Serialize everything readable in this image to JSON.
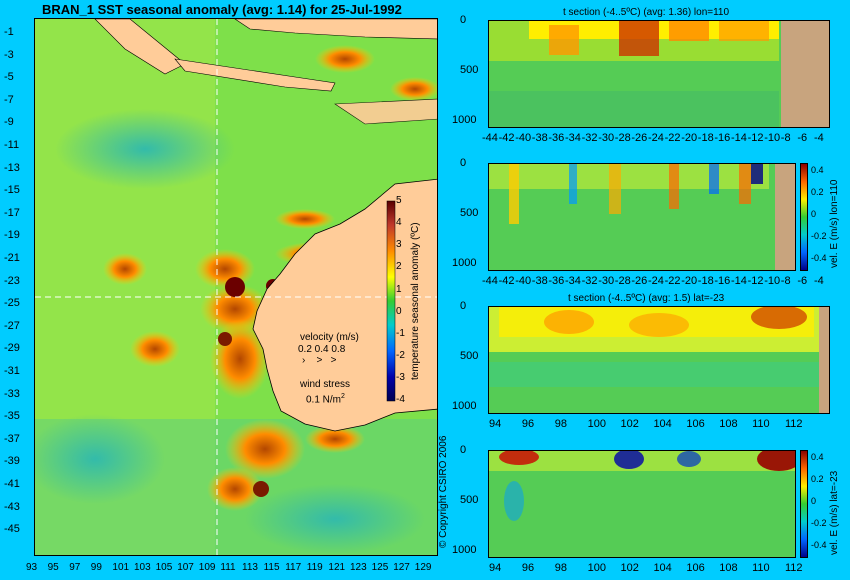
{
  "map": {
    "title": "BRAN_1 SST seasonal anomaly (avg: 1.14) for 25-Jul-1992",
    "lat_ticks": [
      "-1",
      "-3",
      "-5",
      "-7",
      "-9",
      "-11",
      "-13",
      "-15",
      "-17",
      "-19",
      "-21",
      "-23",
      "-25",
      "-27",
      "-29",
      "-31",
      "-33",
      "-35",
      "-37",
      "-39",
      "-41",
      "-43",
      "-45"
    ],
    "lon_ticks": [
      "93",
      "95",
      "97",
      "99",
      "101",
      "103",
      "105",
      "107",
      "109",
      "111",
      "113",
      "115",
      "117",
      "119",
      "121",
      "123",
      "125",
      "127",
      "129"
    ],
    "colorbar_label": "temperature seasonal anomaly (ºC)",
    "colorbar_ticks": [
      "5",
      "4",
      "3",
      "2",
      "1",
      "0",
      "-1",
      "-2",
      "-3",
      "-4"
    ],
    "velocity_label": "velocity (m/s)",
    "velocity_values": "0.2 0.4 0.8",
    "wind_label": "wind stress",
    "wind_value": "0.1 N/m",
    "wind_exp": "2",
    "copyright": "© Copyright CSIRO 2006"
  },
  "panels": [
    {
      "title": "t section (-4..5ºC) (avg: 1.36) lon=110",
      "x_ticks": [
        "-44",
        "-42",
        "-40",
        "-38",
        "-36",
        "-34",
        "-32",
        "-30",
        "-28",
        "-26",
        "-24",
        "-22",
        "-20",
        "-18",
        "-16",
        "-14",
        "-12",
        "-10",
        "-8",
        "-6",
        "-4"
      ],
      "y_ticks": [
        "0",
        "500",
        "1000"
      ]
    },
    {
      "title": "",
      "x_ticks": [
        "-44",
        "-42",
        "-40",
        "-38",
        "-36",
        "-34",
        "-32",
        "-30",
        "-28",
        "-26",
        "-24",
        "-22",
        "-20",
        "-18",
        "-16",
        "-14",
        "-12",
        "-10",
        "-8",
        "-6",
        "-4"
      ],
      "y_ticks": [
        "0",
        "500",
        "1000"
      ],
      "cbar_label": "vel. E (m/s) lon=110",
      "cbar_ticks": [
        "0.4",
        "0.2",
        "0",
        "-0.2",
        "-0.4"
      ]
    },
    {
      "title": "t section (-4..5ºC) (avg: 1.5) lat=-23",
      "x_ticks": [
        "94",
        "96",
        "98",
        "100",
        "102",
        "104",
        "106",
        "108",
        "110",
        "112"
      ],
      "y_ticks": [
        "0",
        "500",
        "1000"
      ]
    },
    {
      "title": "",
      "x_ticks": [
        "94",
        "96",
        "98",
        "100",
        "102",
        "104",
        "106",
        "108",
        "110",
        "112"
      ],
      "y_ticks": [
        "0",
        "500",
        "1000"
      ],
      "cbar_label": "vel. E (m/s) lat=-23",
      "cbar_ticks": [
        "0.4",
        "0.2",
        "0",
        "-0.2",
        "-0.4"
      ]
    }
  ],
  "chart_data": [
    {
      "type": "heatmap",
      "title": "BRAN_1 SST seasonal anomaly (avg: 1.14) for 25-Jul-1992",
      "xlabel": "",
      "ylabel": "",
      "xlim": [
        93,
        130
      ],
      "ylim": [
        -45,
        0
      ],
      "colorbar_range": [
        -4,
        5
      ],
      "grid": false
    },
    {
      "type": "heatmap",
      "title": "t section (-4..5ºC) (avg: 1.36) lon=110",
      "xlim": [
        -45,
        -3
      ],
      "ylim": [
        0,
        1050
      ],
      "colorbar_range": [
        -4,
        5
      ]
    },
    {
      "type": "heatmap",
      "title": "",
      "xlim": [
        -45,
        -3
      ],
      "ylim": [
        0,
        1050
      ],
      "colorbar_label": "vel. E (m/s) lon=110",
      "colorbar_range": [
        -0.4,
        0.4
      ]
    },
    {
      "type": "heatmap",
      "title": "t section (-4..5ºC) (avg: 1.5) lat=-23",
      "xlim": [
        92.5,
        114
      ],
      "ylim": [
        0,
        1050
      ],
      "colorbar_range": [
        -4,
        5
      ]
    },
    {
      "type": "heatmap",
      "title": "",
      "xlim": [
        92.5,
        114
      ],
      "ylim": [
        0,
        1050
      ],
      "colorbar_label": "vel. E (m/s) lat=-23",
      "colorbar_range": [
        -0.4,
        0.4
      ]
    }
  ]
}
